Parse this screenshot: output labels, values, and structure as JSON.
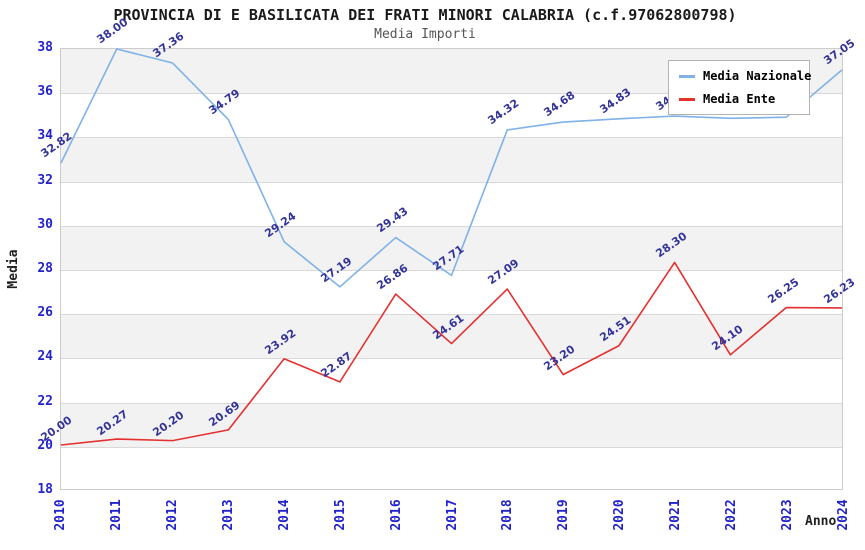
{
  "chart_data": {
    "type": "line",
    "title": "PROVINCIA DI E BASILICATA DEI FRATI MINORI CALABRIA (c.f.97062800798)",
    "subtitle": "Media Importi",
    "xlabel": "Anno",
    "ylabel": "Media",
    "x": [
      2010,
      2011,
      2012,
      2013,
      2014,
      2015,
      2016,
      2017,
      2018,
      2019,
      2020,
      2021,
      2022,
      2023,
      2024
    ],
    "series": [
      {
        "name": "Media Nazionale",
        "color": "#7fb2e8",
        "values": [
          32.82,
          38.0,
          37.36,
          34.79,
          29.24,
          27.19,
          29.43,
          27.71,
          34.32,
          34.68,
          34.83,
          34.95,
          34.85,
          34.9,
          37.05
        ]
      },
      {
        "name": "Media Ente",
        "color": "#e53030",
        "values": [
          20.0,
          20.27,
          20.2,
          20.69,
          23.92,
          22.87,
          26.86,
          24.61,
          27.09,
          23.2,
          24.51,
          28.3,
          24.1,
          26.25,
          26.23
        ]
      }
    ],
    "ylim": [
      18,
      38
    ],
    "ytick_step": 2,
    "grid": true,
    "legend_position": "top-right",
    "label_decimals": 2
  },
  "colors": {
    "tick_label": "#2323cc",
    "data_label": "#333399",
    "grid_line": "#d9d9d9",
    "band_fill": "#f2f2f2",
    "plot_border": "#cccccc",
    "title": "#1a1a1a",
    "subtitle": "#555555",
    "axis_title": "#222222",
    "legend_border": "#b3b3b3"
  }
}
